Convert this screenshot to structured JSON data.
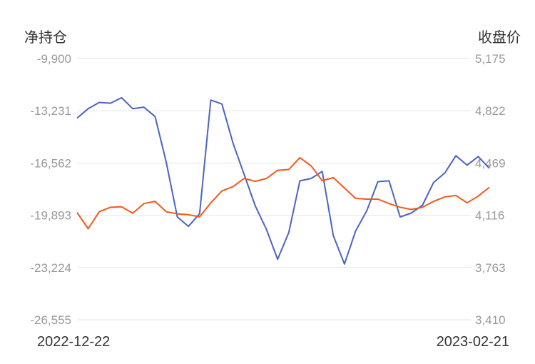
{
  "chart_data": {
    "type": "line",
    "left_axis_title": "净持仓",
    "right_axis_title": "收盘价",
    "left_ticks": [
      "-9,900",
      "-13,231",
      "-16,562",
      "-19,893",
      "-23,224",
      "-26,555"
    ],
    "right_ticks": [
      "5,175",
      "4,822",
      "4,469",
      "4,116",
      "3,763",
      "3,410"
    ],
    "left_ylim": [
      -26555,
      -9900
    ],
    "right_ylim": [
      3410,
      5175
    ],
    "x_start_label": "2022-12-22",
    "x_end_label": "2023-02-21",
    "grid": true,
    "series": [
      {
        "axis": "left",
        "color": "#4a64c2",
        "values": [
          -13700,
          -13100,
          -12700,
          -12750,
          -12400,
          -13100,
          -13000,
          -13600,
          -16500,
          -20000,
          -20600,
          -19800,
          -12550,
          -12800,
          -15300,
          -17300,
          -19300,
          -20800,
          -22700,
          -21000,
          -17700,
          -17550,
          -17100,
          -21200,
          -23000,
          -20900,
          -19600,
          -17750,
          -17700,
          -20000,
          -19750,
          -19250,
          -17800,
          -17200,
          -16100,
          -16700,
          -16150,
          -16900
        ]
      },
      {
        "axis": "right",
        "color": "#f25a1a",
        "values": [
          4135,
          4025,
          4140,
          4170,
          4173,
          4130,
          4195,
          4210,
          4140,
          4125,
          4120,
          4105,
          4200,
          4280,
          4310,
          4365,
          4345,
          4365,
          4420,
          4425,
          4505,
          4450,
          4350,
          4370,
          4300,
          4230,
          4225,
          4225,
          4195,
          4170,
          4155,
          4170,
          4210,
          4240,
          4250,
          4200,
          4245,
          4305
        ]
      }
    ]
  }
}
